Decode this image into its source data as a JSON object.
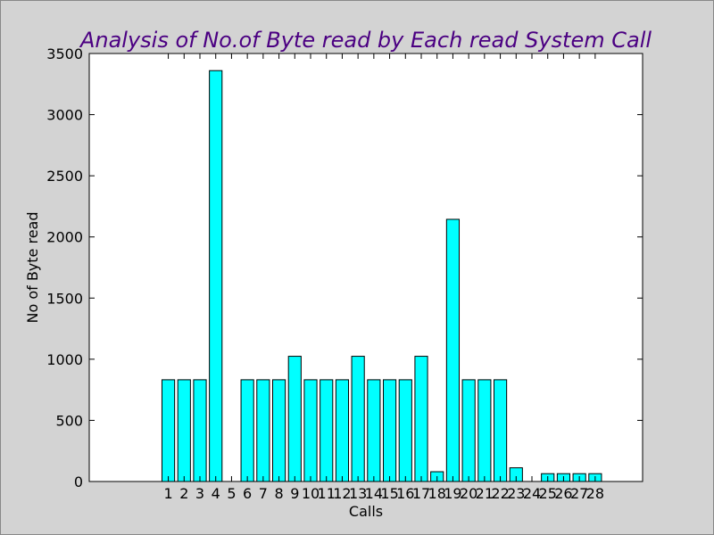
{
  "chart_data": {
    "type": "bar",
    "title": "Analysis of No.of Byte read by Each read System Call",
    "xlabel": "Calls",
    "ylabel": "No of Byte read",
    "categories": [
      "1",
      "2",
      "3",
      "4",
      "5",
      "6",
      "7",
      "8",
      "9",
      "10",
      "11",
      "12",
      "13",
      "14",
      "15",
      "16",
      "17",
      "18",
      "19",
      "20",
      "21",
      "22",
      "23",
      "24",
      "25",
      "26",
      "27",
      "28"
    ],
    "values": [
      832,
      832,
      832,
      3360,
      0,
      832,
      832,
      832,
      1024,
      832,
      832,
      832,
      1024,
      832,
      832,
      832,
      1024,
      80,
      2144,
      832,
      832,
      832,
      112,
      0,
      64,
      64,
      64,
      64
    ],
    "xlim": [
      -4,
      31
    ],
    "ylim": [
      0,
      3500
    ],
    "yticks": [
      0,
      500,
      1000,
      1500,
      2000,
      2500,
      3000,
      3500
    ],
    "grid": false,
    "colors": {
      "background": "#d3d3d3",
      "plot_background": "#ffffff",
      "bar_fill": "#00ffff",
      "bar_edge": "#000000",
      "title": "#4b0082"
    }
  }
}
